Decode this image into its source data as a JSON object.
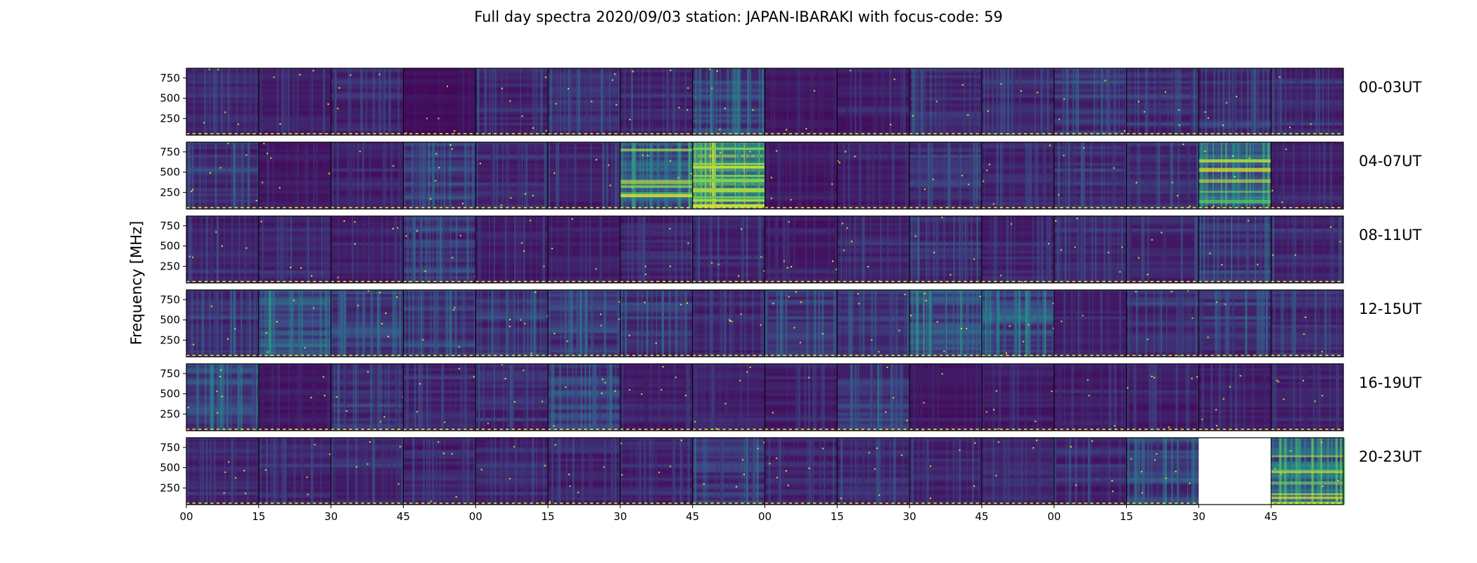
{
  "title": "Full day spectra 2020/09/03 station: JAPAN-IBARAKI with focus-code: 59",
  "chart_data": {
    "type": "heatmap",
    "title": "Full day spectra 2020/09/03 station: JAPAN-IBARAKI with focus-code: 59",
    "ylabel": "Frequency [MHz]",
    "ylim": [
      45,
      870
    ],
    "yticks": [
      "250",
      "500",
      "750"
    ],
    "ytick_values": [
      250,
      500,
      750
    ],
    "xtick_labels": [
      "00",
      "15",
      "30",
      "45",
      "00",
      "15",
      "30",
      "45",
      "00",
      "15",
      "30",
      "45",
      "00",
      "15",
      "30",
      "45"
    ],
    "colormap": "viridis",
    "colors": {
      "low": "#440154",
      "mid": "#21918c",
      "high": "#fde725"
    },
    "rows": [
      {
        "label": "00-03UT",
        "panel_intensity": [
          0.25,
          0.2,
          0.25,
          0.1,
          0.25,
          0.3,
          0.25,
          0.45,
          0.15,
          0.2,
          0.3,
          0.25,
          0.35,
          0.3,
          0.3,
          0.25
        ],
        "missing_panels": []
      },
      {
        "label": "04-07UT",
        "panel_intensity": [
          0.3,
          0.15,
          0.2,
          0.35,
          0.25,
          0.25,
          0.6,
          0.9,
          0.15,
          0.2,
          0.3,
          0.25,
          0.3,
          0.3,
          0.6,
          0.2
        ],
        "missing_panels": []
      },
      {
        "label": "08-11UT",
        "panel_intensity": [
          0.25,
          0.25,
          0.2,
          0.35,
          0.2,
          0.2,
          0.25,
          0.25,
          0.2,
          0.25,
          0.3,
          0.25,
          0.25,
          0.25,
          0.35,
          0.25
        ],
        "missing_panels": []
      },
      {
        "label": "12-15UT",
        "panel_intensity": [
          0.3,
          0.5,
          0.4,
          0.4,
          0.35,
          0.4,
          0.35,
          0.25,
          0.35,
          0.3,
          0.5,
          0.5,
          0.2,
          0.3,
          0.35,
          0.3
        ],
        "missing_panels": []
      },
      {
        "label": "16-19UT",
        "panel_intensity": [
          0.45,
          0.15,
          0.3,
          0.25,
          0.3,
          0.4,
          0.2,
          0.2,
          0.2,
          0.35,
          0.15,
          0.2,
          0.2,
          0.2,
          0.2,
          0.2
        ],
        "missing_panels": []
      },
      {
        "label": "20-23UT",
        "panel_intensity": [
          0.25,
          0.25,
          0.25,
          0.25,
          0.25,
          0.25,
          0.25,
          0.35,
          0.25,
          0.25,
          0.25,
          0.25,
          0.25,
          0.4,
          0.0,
          0.75
        ],
        "missing_panels": [
          14
        ]
      }
    ]
  }
}
